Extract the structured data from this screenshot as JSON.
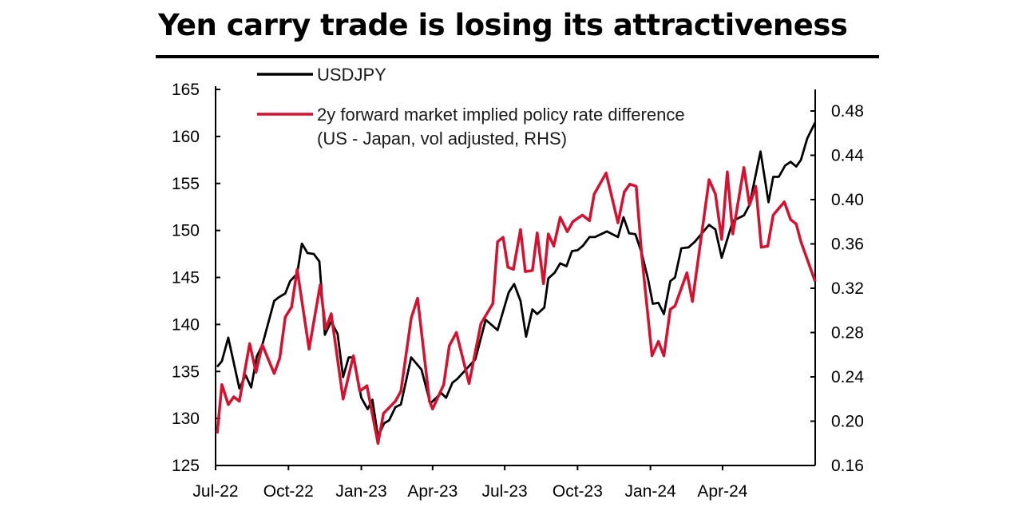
{
  "chart_data": {
    "type": "line",
    "title": "Yen carry trade is losing its attractiveness",
    "xlabel": "",
    "ylabel": "",
    "y2label": "",
    "xlim": [
      "2022-07-01",
      "2024-07-27"
    ],
    "ylim": [
      125,
      165
    ],
    "y2lim": [
      0.16,
      0.48
    ],
    "grid": false,
    "legend_position": "top-left",
    "x_ticks": [
      {
        "label": "Jul-22",
        "date": "2022-07-01"
      },
      {
        "label": "Oct-22",
        "date": "2022-10-01"
      },
      {
        "label": "Jan-23",
        "date": "2023-01-01"
      },
      {
        "label": "Apr-23",
        "date": "2023-04-01"
      },
      {
        "label": "Jul-23",
        "date": "2023-07-01"
      },
      {
        "label": "Oct-23",
        "date": "2023-10-01"
      },
      {
        "label": "Jan-24",
        "date": "2024-01-01"
      },
      {
        "label": "Apr-24",
        "date": "2024-04-01"
      }
    ],
    "y_ticks": [
      "125",
      "130",
      "135",
      "140",
      "145",
      "150",
      "155",
      "160",
      "165"
    ],
    "y2_ticks": [
      "0.16",
      "0.20",
      "0.24",
      "0.28",
      "0.32",
      "0.36",
      "0.40",
      "0.44",
      "0.48"
    ],
    "series": [
      {
        "name": "USDJPY",
        "axis": "left",
        "color": "#000000",
        "points": [
          [
            "2022-07-03",
            135.5
          ],
          [
            "2022-07-09",
            136.1
          ],
          [
            "2022-07-17",
            138.6
          ],
          [
            "2022-07-31",
            133.2
          ],
          [
            "2022-08-08",
            134.6
          ],
          [
            "2022-08-15",
            133.3
          ],
          [
            "2022-08-22",
            136.6
          ],
          [
            "2022-08-29",
            137.8
          ],
          [
            "2022-09-13",
            142.5
          ],
          [
            "2022-09-19",
            142.9
          ],
          [
            "2022-09-27",
            143.3
          ],
          [
            "2022-10-03",
            144.6
          ],
          [
            "2022-10-12",
            145.4
          ],
          [
            "2022-10-18",
            148.6
          ],
          [
            "2022-10-25",
            147.6
          ],
          [
            "2022-11-02",
            147.5
          ],
          [
            "2022-11-09",
            146.7
          ],
          [
            "2022-11-16",
            138.9
          ],
          [
            "2022-11-24",
            140.3
          ],
          [
            "2022-12-02",
            139.0
          ],
          [
            "2022-12-09",
            134.4
          ],
          [
            "2022-12-16",
            136.5
          ],
          [
            "2022-12-22",
            136.5
          ],
          [
            "2023-01-01",
            132.2
          ],
          [
            "2023-01-09",
            131.0
          ],
          [
            "2023-01-15",
            132.0
          ],
          [
            "2023-01-22",
            128.1
          ],
          [
            "2023-01-30",
            129.5
          ],
          [
            "2023-02-05",
            129.8
          ],
          [
            "2023-02-13",
            131.2
          ],
          [
            "2023-02-20",
            131.5
          ],
          [
            "2023-03-05",
            136.5
          ],
          [
            "2023-03-18",
            135.2
          ],
          [
            "2023-03-29",
            131.6
          ],
          [
            "2023-04-12",
            132.7
          ],
          [
            "2023-04-18",
            132.2
          ],
          [
            "2023-04-26",
            133.8
          ],
          [
            "2023-05-02",
            134.2
          ],
          [
            "2023-05-25",
            136.3
          ],
          [
            "2023-06-07",
            140.5
          ],
          [
            "2023-06-22",
            139.4
          ],
          [
            "2023-07-06",
            143.4
          ],
          [
            "2023-07-13",
            144.3
          ],
          [
            "2023-07-21",
            142.5
          ],
          [
            "2023-07-28",
            138.7
          ],
          [
            "2023-08-05",
            141.6
          ],
          [
            "2023-08-11",
            141.1
          ],
          [
            "2023-08-20",
            141.8
          ],
          [
            "2023-08-25",
            144.9
          ],
          [
            "2023-09-02",
            145.5
          ],
          [
            "2023-09-09",
            146.5
          ],
          [
            "2023-09-17",
            146.2
          ],
          [
            "2023-09-24",
            147.8
          ],
          [
            "2023-10-01",
            147.9
          ],
          [
            "2023-10-08",
            148.4
          ],
          [
            "2023-10-16",
            149.3
          ],
          [
            "2023-10-23",
            149.3
          ],
          [
            "2023-11-07",
            149.9
          ],
          [
            "2023-11-21",
            149.3
          ],
          [
            "2023-11-28",
            151.4
          ],
          [
            "2023-12-05",
            149.7
          ],
          [
            "2023-12-13",
            149.6
          ],
          [
            "2023-12-21",
            147.6
          ],
          [
            "2023-12-29",
            144.8
          ],
          [
            "2024-01-04",
            142.2
          ],
          [
            "2024-01-11",
            142.3
          ],
          [
            "2024-01-18",
            141.1
          ],
          [
            "2024-01-26",
            144.6
          ],
          [
            "2024-02-01",
            145.0
          ],
          [
            "2024-02-09",
            148.1
          ],
          [
            "2024-02-18",
            148.2
          ],
          [
            "2024-02-26",
            148.8
          ],
          [
            "2024-03-15",
            150.6
          ],
          [
            "2024-03-23",
            150.1
          ],
          [
            "2024-03-31",
            147.1
          ],
          [
            "2024-04-14",
            151.0
          ],
          [
            "2024-04-28",
            151.6
          ],
          [
            "2024-05-05",
            152.7
          ],
          [
            "2024-05-19",
            158.4
          ],
          [
            "2024-05-29",
            153.0
          ],
          [
            "2024-06-04",
            155.7
          ],
          [
            "2024-06-11",
            155.7
          ],
          [
            "2024-06-19",
            156.9
          ],
          [
            "2024-06-26",
            157.3
          ],
          [
            "2024-07-03",
            156.8
          ],
          [
            "2024-07-09",
            157.5
          ],
          [
            "2024-07-17",
            159.8
          ],
          [
            "2024-07-27",
            161.5
          ]
        ]
      },
      {
        "name": "2y forward market implied policy rate difference (US - Japan, vol adjusted, RHS)",
        "name_line1": "2y forward market implied policy rate difference",
        "name_line2": "(US - Japan, vol adjusted, RHS)",
        "axis": "right",
        "color": "#d7102f",
        "points": [
          [
            "2022-07-03",
            0.189
          ],
          [
            "2022-07-09",
            0.233
          ],
          [
            "2022-07-17",
            0.215
          ],
          [
            "2022-07-24",
            0.222
          ],
          [
            "2022-07-31",
            0.218
          ],
          [
            "2022-08-13",
            0.27
          ],
          [
            "2022-08-21",
            0.244
          ],
          [
            "2022-08-29",
            0.269
          ],
          [
            "2022-09-13",
            0.243
          ],
          [
            "2022-09-20",
            0.257
          ],
          [
            "2022-09-27",
            0.294
          ],
          [
            "2022-10-05",
            0.303
          ],
          [
            "2022-10-12",
            0.337
          ],
          [
            "2022-10-27",
            0.265
          ],
          [
            "2022-11-10",
            0.323
          ],
          [
            "2022-11-17",
            0.283
          ],
          [
            "2022-11-24",
            0.297
          ],
          [
            "2022-12-09",
            0.22
          ],
          [
            "2022-12-22",
            0.259
          ],
          [
            "2022-12-30",
            0.227
          ],
          [
            "2023-01-08",
            0.232
          ],
          [
            "2023-01-22",
            0.18
          ],
          [
            "2023-01-29",
            0.207
          ],
          [
            "2023-02-13",
            0.218
          ],
          [
            "2023-02-20",
            0.227
          ],
          [
            "2023-03-05",
            0.293
          ],
          [
            "2023-03-13",
            0.311
          ],
          [
            "2023-03-28",
            0.218
          ],
          [
            "2023-04-01",
            0.211
          ],
          [
            "2023-04-15",
            0.233
          ],
          [
            "2023-04-22",
            0.268
          ],
          [
            "2023-05-01",
            0.28
          ],
          [
            "2023-05-17",
            0.234
          ],
          [
            "2023-06-01",
            0.288
          ],
          [
            "2023-06-16",
            0.306
          ],
          [
            "2023-06-22",
            0.362
          ],
          [
            "2023-06-29",
            0.366
          ],
          [
            "2023-07-05",
            0.339
          ],
          [
            "2023-07-12",
            0.337
          ],
          [
            "2023-07-21",
            0.373
          ],
          [
            "2023-07-27",
            0.335
          ],
          [
            "2023-08-05",
            0.336
          ],
          [
            "2023-08-11",
            0.37
          ],
          [
            "2023-08-19",
            0.324
          ],
          [
            "2023-08-25",
            0.369
          ],
          [
            "2023-09-01",
            0.358
          ],
          [
            "2023-09-09",
            0.384
          ],
          [
            "2023-09-18",
            0.371
          ],
          [
            "2023-09-25",
            0.38
          ],
          [
            "2023-10-07",
            0.386
          ],
          [
            "2023-10-16",
            0.381
          ],
          [
            "2023-10-22",
            0.405
          ],
          [
            "2023-11-06",
            0.424
          ],
          [
            "2023-11-21",
            0.379
          ],
          [
            "2023-11-29",
            0.407
          ],
          [
            "2023-12-06",
            0.414
          ],
          [
            "2023-12-14",
            0.412
          ],
          [
            "2023-12-21",
            0.35
          ],
          [
            "2024-01-03",
            0.259
          ],
          [
            "2024-01-11",
            0.272
          ],
          [
            "2024-01-18",
            0.259
          ],
          [
            "2024-01-26",
            0.301
          ],
          [
            "2024-02-01",
            0.304
          ],
          [
            "2024-02-16",
            0.334
          ],
          [
            "2024-02-23",
            0.308
          ],
          [
            "2024-03-15",
            0.418
          ],
          [
            "2024-03-23",
            0.405
          ],
          [
            "2024-03-31",
            0.364
          ],
          [
            "2024-04-07",
            0.425
          ],
          [
            "2024-04-14",
            0.369
          ],
          [
            "2024-04-28",
            0.429
          ],
          [
            "2024-05-05",
            0.395
          ],
          [
            "2024-05-13",
            0.412
          ],
          [
            "2024-05-20",
            0.357
          ],
          [
            "2024-05-28",
            0.358
          ],
          [
            "2024-06-04",
            0.386
          ],
          [
            "2024-06-18",
            0.398
          ],
          [
            "2024-06-26",
            0.382
          ],
          [
            "2024-07-03",
            0.378
          ],
          [
            "2024-07-09",
            0.362
          ],
          [
            "2024-07-27",
            0.326
          ]
        ]
      }
    ]
  }
}
